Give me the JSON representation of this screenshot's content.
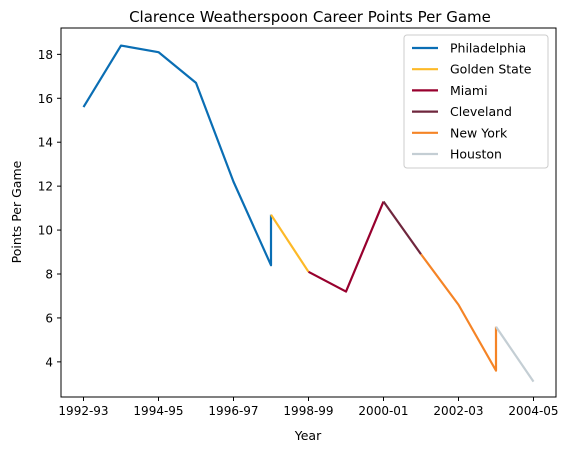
{
  "chart_data": {
    "type": "line",
    "title": "Clarence Weatherspoon Career Points Per Game",
    "xlabel": "Year",
    "ylabel": "Points Per Game",
    "xticks": [
      {
        "x": 0,
        "label": "1992-93"
      },
      {
        "x": 2,
        "label": "1994-95"
      },
      {
        "x": 4,
        "label": "1996-97"
      },
      {
        "x": 6,
        "label": "1998-99"
      },
      {
        "x": 8,
        "label": "2000-01"
      },
      {
        "x": 10,
        "label": "2002-03"
      },
      {
        "x": 12,
        "label": "2004-05"
      }
    ],
    "yticks": [
      4,
      6,
      8,
      10,
      12,
      14,
      16,
      18
    ],
    "xlim": [
      -0.6,
      12.6
    ],
    "ylim": [
      2.4,
      19.2
    ],
    "grid": false,
    "legend_position": "top-right",
    "series": [
      {
        "name": "Philadelphia",
        "color": "#0a6eb4",
        "points": [
          [
            0,
            15.6
          ],
          [
            1,
            18.4
          ],
          [
            2,
            18.1
          ],
          [
            3,
            16.7
          ],
          [
            4,
            12.2
          ],
          [
            5,
            8.4
          ],
          [
            5,
            10.7
          ]
        ]
      },
      {
        "name": "Golden State",
        "color": "#fdb927",
        "points": [
          [
            5,
            10.7
          ],
          [
            6,
            8.1
          ]
        ]
      },
      {
        "name": "Miami",
        "color": "#98002e",
        "points": [
          [
            6,
            8.1
          ],
          [
            7,
            7.2
          ],
          [
            8,
            11.3
          ]
        ]
      },
      {
        "name": "Cleveland",
        "color": "#6f263d",
        "points": [
          [
            8,
            11.3
          ],
          [
            9,
            8.9
          ]
        ]
      },
      {
        "name": "New York",
        "color": "#f58426",
        "points": [
          [
            9,
            8.9
          ],
          [
            10,
            6.6
          ],
          [
            11,
            3.6
          ],
          [
            11,
            5.6
          ]
        ]
      },
      {
        "name": "Houston",
        "color": "#c4ced4",
        "points": [
          [
            11,
            5.6
          ],
          [
            12,
            3.1
          ]
        ]
      }
    ]
  }
}
